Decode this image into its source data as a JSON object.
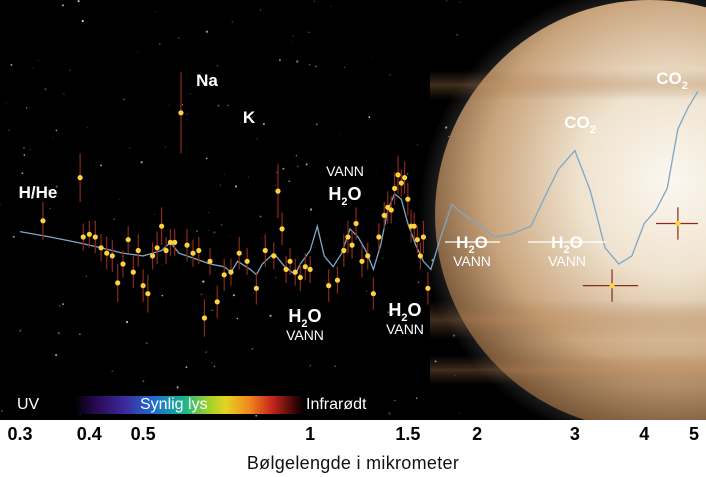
{
  "chart_data": {
    "type": "scatter",
    "x_scale": "log",
    "xlim": [
      0.3,
      5
    ],
    "ylim": [
      0,
      1
    ],
    "xlabel": "Bølgelengde i mikrometer",
    "ylabel": "",
    "grid": false,
    "x_ticks": [
      "0.3",
      "0.4",
      "0.5",
      "1",
      "1.5",
      "2",
      "3",
      "4",
      "5"
    ],
    "band_labels": {
      "uv": "UV",
      "visible": "Synlig lys",
      "ir": "Infrarødt"
    },
    "annotations": [
      {
        "id": "hhe",
        "text": "H/He"
      },
      {
        "id": "na",
        "text": "Na"
      },
      {
        "id": "k",
        "text": "K"
      },
      {
        "id": "h2o_1",
        "main": "H",
        "sub": "2",
        "tail": "O",
        "caption": "VANN"
      },
      {
        "id": "h2o_2",
        "main": "H",
        "sub": "2",
        "tail": "O",
        "caption": "VANN"
      },
      {
        "id": "h2o_3",
        "main": "H",
        "sub": "2",
        "tail": "O",
        "caption": "VANN"
      },
      {
        "id": "h2o_4",
        "main": "H",
        "sub": "2",
        "tail": "O",
        "caption": "VANN"
      },
      {
        "id": "h2o_5",
        "main": "H",
        "sub": "2",
        "tail": "O",
        "caption": "VANN"
      },
      {
        "id": "co2_1",
        "main": "CO",
        "sub": "2"
      },
      {
        "id": "co2_2",
        "main": "CO",
        "sub": "2"
      }
    ],
    "points": [
      {
        "x": 0.33,
        "y": 0.46,
        "e": 0.07
      },
      {
        "x": 0.385,
        "y": 0.62,
        "e": 0.09
      },
      {
        "x": 0.39,
        "y": 0.4,
        "e": 0.05
      },
      {
        "x": 0.4,
        "y": 0.41,
        "e": 0.05
      },
      {
        "x": 0.41,
        "y": 0.4,
        "e": 0.06
      },
      {
        "x": 0.42,
        "y": 0.36,
        "e": 0.05
      },
      {
        "x": 0.43,
        "y": 0.34,
        "e": 0.06
      },
      {
        "x": 0.44,
        "y": 0.33,
        "e": 0.06
      },
      {
        "x": 0.45,
        "y": 0.23,
        "e": 0.07
      },
      {
        "x": 0.46,
        "y": 0.3,
        "e": 0.05
      },
      {
        "x": 0.47,
        "y": 0.39,
        "e": 0.05
      },
      {
        "x": 0.48,
        "y": 0.27,
        "e": 0.06
      },
      {
        "x": 0.49,
        "y": 0.35,
        "e": 0.06
      },
      {
        "x": 0.5,
        "y": 0.22,
        "e": 0.06
      },
      {
        "x": 0.51,
        "y": 0.19,
        "e": 0.07
      },
      {
        "x": 0.52,
        "y": 0.33,
        "e": 0.05
      },
      {
        "x": 0.53,
        "y": 0.36,
        "e": 0.06
      },
      {
        "x": 0.54,
        "y": 0.44,
        "e": 0.07
      },
      {
        "x": 0.55,
        "y": 0.35,
        "e": 0.05
      },
      {
        "x": 0.56,
        "y": 0.38,
        "e": 0.05
      },
      {
        "x": 0.57,
        "y": 0.38,
        "e": 0.05
      },
      {
        "x": 0.585,
        "y": 0.86,
        "e": 0.15
      },
      {
        "x": 0.6,
        "y": 0.37,
        "e": 0.06
      },
      {
        "x": 0.615,
        "y": 0.34,
        "e": 0.05
      },
      {
        "x": 0.63,
        "y": 0.35,
        "e": 0.05
      },
      {
        "x": 0.645,
        "y": 0.1,
        "e": 0.07
      },
      {
        "x": 0.66,
        "y": 0.31,
        "e": 0.05
      },
      {
        "x": 0.68,
        "y": 0.16,
        "e": 0.06
      },
      {
        "x": 0.7,
        "y": 0.26,
        "e": 0.06
      },
      {
        "x": 0.72,
        "y": 0.27,
        "e": 0.05
      },
      {
        "x": 0.745,
        "y": 0.34,
        "e": 0.06
      },
      {
        "x": 0.77,
        "y": 0.31,
        "e": 0.05
      },
      {
        "x": 0.8,
        "y": 0.21,
        "e": 0.06
      },
      {
        "x": 0.83,
        "y": 0.35,
        "e": 0.06
      },
      {
        "x": 0.86,
        "y": 0.33,
        "e": 0.05
      },
      {
        "x": 0.875,
        "y": 0.57,
        "e": 0.1
      },
      {
        "x": 0.89,
        "y": 0.43,
        "e": 0.06
      },
      {
        "x": 0.905,
        "y": 0.28,
        "e": 0.05
      },
      {
        "x": 0.92,
        "y": 0.31,
        "e": 0.05
      },
      {
        "x": 0.94,
        "y": 0.27,
        "e": 0.05
      },
      {
        "x": 0.96,
        "y": 0.25,
        "e": 0.05
      },
      {
        "x": 0.98,
        "y": 0.29,
        "e": 0.05
      },
      {
        "x": 1.0,
        "y": 0.28,
        "e": 0.05
      },
      {
        "x": 1.08,
        "y": 0.22,
        "e": 0.06
      },
      {
        "x": 1.12,
        "y": 0.24,
        "e": 0.05
      },
      {
        "x": 1.15,
        "y": 0.35,
        "e": 0.06
      },
      {
        "x": 1.17,
        "y": 0.4,
        "e": 0.06
      },
      {
        "x": 1.19,
        "y": 0.37,
        "e": 0.05
      },
      {
        "x": 1.21,
        "y": 0.45,
        "e": 0.06
      },
      {
        "x": 1.24,
        "y": 0.31,
        "e": 0.06
      },
      {
        "x": 1.27,
        "y": 0.33,
        "e": 0.05
      },
      {
        "x": 1.3,
        "y": 0.19,
        "e": 0.06
      },
      {
        "x": 1.33,
        "y": 0.4,
        "e": 0.05
      },
      {
        "x": 1.36,
        "y": 0.48,
        "e": 0.05
      },
      {
        "x": 1.38,
        "y": 0.51,
        "e": 0.06
      },
      {
        "x": 1.4,
        "y": 0.5,
        "e": 0.05
      },
      {
        "x": 1.42,
        "y": 0.58,
        "e": 0.06
      },
      {
        "x": 1.44,
        "y": 0.63,
        "e": 0.07
      },
      {
        "x": 1.46,
        "y": 0.6,
        "e": 0.05
      },
      {
        "x": 1.48,
        "y": 0.62,
        "e": 0.06
      },
      {
        "x": 1.5,
        "y": 0.54,
        "e": 0.06
      },
      {
        "x": 1.52,
        "y": 0.44,
        "e": 0.06
      },
      {
        "x": 1.54,
        "y": 0.44,
        "e": 0.05
      },
      {
        "x": 1.56,
        "y": 0.39,
        "e": 0.05
      },
      {
        "x": 1.58,
        "y": 0.33,
        "e": 0.05
      },
      {
        "x": 1.6,
        "y": 0.4,
        "e": 0.06
      },
      {
        "x": 1.63,
        "y": 0.21,
        "e": 0.06
      },
      {
        "x": 3.5,
        "y": 0.22,
        "e": 0.06,
        "xe": 0.4
      },
      {
        "x": 4.6,
        "y": 0.45,
        "e": 0.06,
        "xe": 0.4
      }
    ],
    "model_x": [
      0.3,
      0.34,
      0.38,
      0.42,
      0.46,
      0.5,
      0.54,
      0.56,
      0.58,
      0.62,
      0.66,
      0.7,
      0.72,
      0.74,
      0.78,
      0.8,
      0.82,
      0.86,
      0.9,
      0.94,
      0.96,
      1.0,
      1.03,
      1.06,
      1.1,
      1.14,
      1.18,
      1.22,
      1.26,
      1.3,
      1.34,
      1.38,
      1.42,
      1.46,
      1.5,
      1.55,
      1.6,
      1.65,
      1.72,
      1.8,
      1.9,
      2.0,
      2.15,
      2.3,
      2.5,
      2.65,
      2.8,
      3.0,
      3.2,
      3.4,
      3.6,
      3.8,
      4.0,
      4.2,
      4.4,
      4.6,
      4.8,
      5.0
    ],
    "model_y": [
      0.42,
      0.4,
      0.38,
      0.36,
      0.34,
      0.33,
      0.35,
      0.38,
      0.34,
      0.32,
      0.3,
      0.29,
      0.27,
      0.31,
      0.28,
      0.26,
      0.3,
      0.34,
      0.29,
      0.26,
      0.3,
      0.35,
      0.44,
      0.33,
      0.29,
      0.34,
      0.43,
      0.4,
      0.35,
      0.28,
      0.37,
      0.5,
      0.56,
      0.54,
      0.45,
      0.37,
      0.31,
      0.28,
      0.4,
      0.52,
      0.48,
      0.45,
      0.4,
      0.41,
      0.44,
      0.55,
      0.65,
      0.72,
      0.57,
      0.36,
      0.3,
      0.33,
      0.45,
      0.5,
      0.58,
      0.8,
      0.88,
      0.94
    ]
  }
}
